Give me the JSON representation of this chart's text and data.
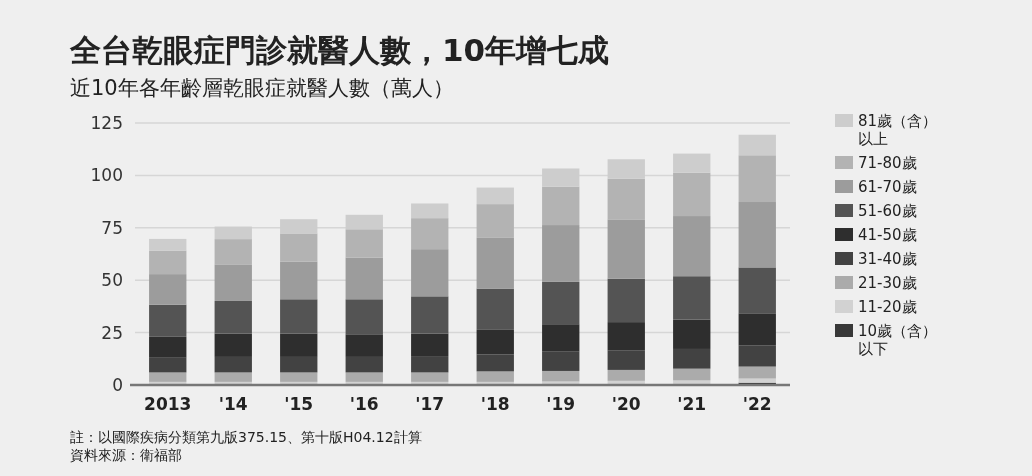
{
  "chart_data": {
    "type": "bar",
    "stacked": true,
    "title": "全台乾眼症門診就醫人數，10年增七成",
    "subtitle": "近10年各年齡層乾眼症就醫人數（萬人）",
    "categories": [
      "2013",
      "'14",
      "'15",
      "'16",
      "'17",
      "'18",
      "'19",
      "'20",
      "'21",
      "'22"
    ],
    "series": [
      {
        "name": "10歲（含）以下",
        "color": "#383838",
        "values": [
          null,
          null,
          null,
          null,
          null,
          null,
          null,
          null,
          null,
          1.1
        ]
      },
      {
        "name": "11-20歲",
        "color": "#d2d2d2",
        "values": [
          1.5,
          1.5,
          1.5,
          1.5,
          1.5,
          1.5,
          1.7,
          2,
          2.2,
          2
        ]
      },
      {
        "name": "21-30歲",
        "color": "#ababab",
        "values": [
          4.5,
          4.5,
          4.5,
          4.5,
          4.5,
          5,
          5,
          5.2,
          5.6,
          5.7
        ]
      },
      {
        "name": "31-40歲",
        "color": "#424242",
        "values": [
          7,
          7.4,
          7.4,
          7.4,
          7.8,
          8.1,
          9.2,
          9.2,
          9.4,
          10
        ]
      },
      {
        "name": "41-50歲",
        "color": "#2e2e2e",
        "values": [
          10,
          11.1,
          11.1,
          10.8,
          10.7,
          11.7,
          13.1,
          13.6,
          14,
          15.4
        ]
      },
      {
        "name": "51-60歲",
        "color": "#545454",
        "values": [
          15.3,
          15.6,
          16.4,
          16.7,
          17.8,
          19.7,
          20.2,
          20.7,
          20.7,
          21.9
        ]
      },
      {
        "name": "61-70歲",
        "color": "#9c9c9c",
        "values": [
          14.6,
          17.2,
          18,
          19.9,
          22.5,
          24.2,
          27.1,
          28.3,
          28.7,
          31.2
        ]
      },
      {
        "name": "71-80歲",
        "color": "#b3b3b3",
        "values": [
          11.2,
          12.3,
          13.4,
          13.5,
          14.8,
          16.1,
          18.3,
          19.4,
          20.7,
          22.3
        ]
      },
      {
        "name": "81歲（含）以上",
        "color": "#cdcdcd",
        "values": [
          5.6,
          6,
          6.8,
          6.9,
          7,
          7.9,
          8.7,
          9.3,
          9.1,
          9.8
        ]
      }
    ],
    "ylim": [
      0,
      125
    ],
    "yticks": [
      0,
      25,
      50,
      75,
      100,
      125
    ],
    "grid": "y",
    "legend": "right",
    "annotations": [
      "註：以國際疾病分類第九版375.15、第十版H04.12計算",
      "資料來源：衛福部"
    ]
  }
}
